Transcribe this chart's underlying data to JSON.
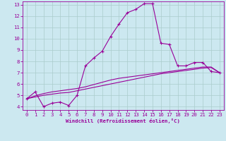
{
  "xlabel": "Windchill (Refroidissement éolien,°C)",
  "bg_color": "#cce8f0",
  "line_color": "#990099",
  "grid_color": "#aacccc",
  "xlim": [
    -0.5,
    23.5
  ],
  "ylim": [
    3.7,
    13.3
  ],
  "yticks": [
    4,
    5,
    6,
    7,
    8,
    9,
    10,
    11,
    12,
    13
  ],
  "xticks": [
    0,
    1,
    2,
    3,
    4,
    5,
    6,
    7,
    8,
    9,
    10,
    11,
    12,
    13,
    14,
    15,
    16,
    17,
    18,
    19,
    20,
    21,
    22,
    23
  ],
  "curve1_x": [
    0,
    1,
    2,
    3,
    4,
    5,
    6,
    7,
    8,
    9,
    10,
    11,
    12,
    13,
    14,
    15,
    16,
    17,
    18,
    19,
    20,
    21,
    22,
    23
  ],
  "curve1_y": [
    4.7,
    5.3,
    4.0,
    4.3,
    4.4,
    4.1,
    5.0,
    7.6,
    8.3,
    8.9,
    10.2,
    11.3,
    12.3,
    12.6,
    13.1,
    13.1,
    9.6,
    9.5,
    7.6,
    7.6,
    7.9,
    7.9,
    7.1,
    7.0
  ],
  "curve2_x": [
    0,
    1,
    2,
    3,
    4,
    5,
    6,
    7,
    8,
    9,
    10,
    11,
    12,
    13,
    14,
    15,
    16,
    17,
    18,
    19,
    20,
    21,
    22,
    23
  ],
  "curve2_y": [
    4.7,
    4.85,
    5.0,
    5.1,
    5.2,
    5.25,
    5.4,
    5.55,
    5.7,
    5.85,
    6.0,
    6.15,
    6.3,
    6.45,
    6.6,
    6.75,
    6.9,
    7.0,
    7.1,
    7.2,
    7.3,
    7.4,
    7.45,
    7.0
  ],
  "curve3_x": [
    0,
    1,
    2,
    3,
    4,
    5,
    6,
    7,
    8,
    9,
    10,
    11,
    12,
    13,
    14,
    15,
    16,
    17,
    18,
    19,
    20,
    21,
    22,
    23
  ],
  "curve3_y": [
    4.7,
    4.95,
    5.15,
    5.3,
    5.4,
    5.5,
    5.6,
    5.75,
    5.95,
    6.15,
    6.35,
    6.5,
    6.6,
    6.7,
    6.8,
    6.9,
    7.0,
    7.1,
    7.2,
    7.3,
    7.4,
    7.5,
    7.5,
    7.0
  ],
  "label_fontsize": 5.2,
  "tick_fontsize": 5.2
}
